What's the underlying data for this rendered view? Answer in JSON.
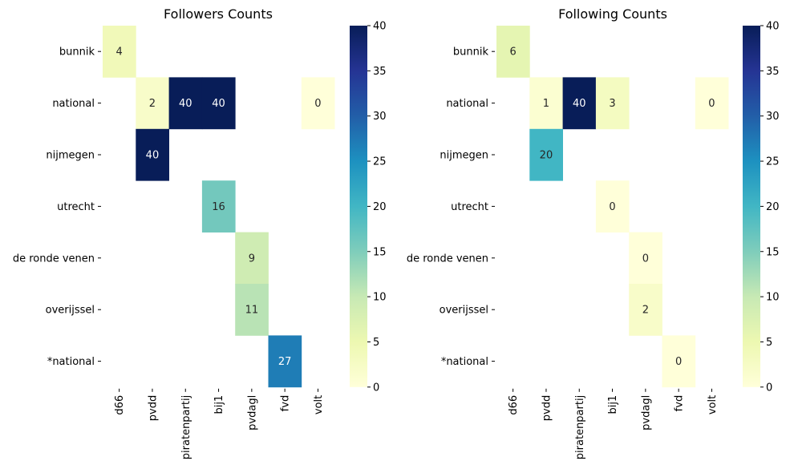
{
  "chart_data": [
    {
      "type": "heatmap",
      "title": "Followers Counts",
      "rows": [
        "bunnik",
        "national",
        "nijmegen",
        "utrecht",
        "de ronde venen",
        "overijssel",
        "*national"
      ],
      "columns": [
        "d66",
        "pvdd",
        "piratenpartij",
        "bij1",
        "pvdagl",
        "fvd",
        "volt"
      ],
      "values": [
        [
          4,
          null,
          null,
          null,
          null,
          null,
          null
        ],
        [
          null,
          2,
          40,
          40,
          null,
          null,
          0
        ],
        [
          null,
          40,
          null,
          null,
          null,
          null,
          null
        ],
        [
          null,
          null,
          null,
          16,
          null,
          null,
          null
        ],
        [
          null,
          null,
          null,
          null,
          9,
          null,
          null
        ],
        [
          null,
          null,
          null,
          null,
          11,
          null,
          null
        ],
        [
          null,
          null,
          null,
          null,
          null,
          27,
          null
        ]
      ],
      "colorbar": {
        "min": 0,
        "max": 40,
        "ticks": [
          "0",
          "5",
          "10",
          "15",
          "20",
          "25",
          "30",
          "35",
          "40"
        ]
      },
      "colormap": "YlGnBu"
    },
    {
      "type": "heatmap",
      "title": "Following Counts",
      "rows": [
        "bunnik",
        "national",
        "nijmegen",
        "utrecht",
        "de ronde venen",
        "overijssel",
        "*national"
      ],
      "columns": [
        "d66",
        "pvdd",
        "piratenpartij",
        "bij1",
        "pvdagl",
        "fvd",
        "volt"
      ],
      "values": [
        [
          6,
          null,
          null,
          null,
          null,
          null,
          null
        ],
        [
          null,
          1,
          40,
          3,
          null,
          null,
          0
        ],
        [
          null,
          20,
          null,
          null,
          null,
          null,
          null
        ],
        [
          null,
          null,
          null,
          0,
          null,
          null,
          null
        ],
        [
          null,
          null,
          null,
          null,
          0,
          null,
          null
        ],
        [
          null,
          null,
          null,
          null,
          2,
          null,
          null
        ],
        [
          null,
          null,
          null,
          null,
          null,
          0,
          null
        ]
      ],
      "colorbar": {
        "min": 0,
        "max": 40,
        "ticks": [
          "0",
          "5",
          "10",
          "15",
          "20",
          "25",
          "30",
          "35",
          "40"
        ]
      },
      "colormap": "YlGnBu"
    }
  ]
}
